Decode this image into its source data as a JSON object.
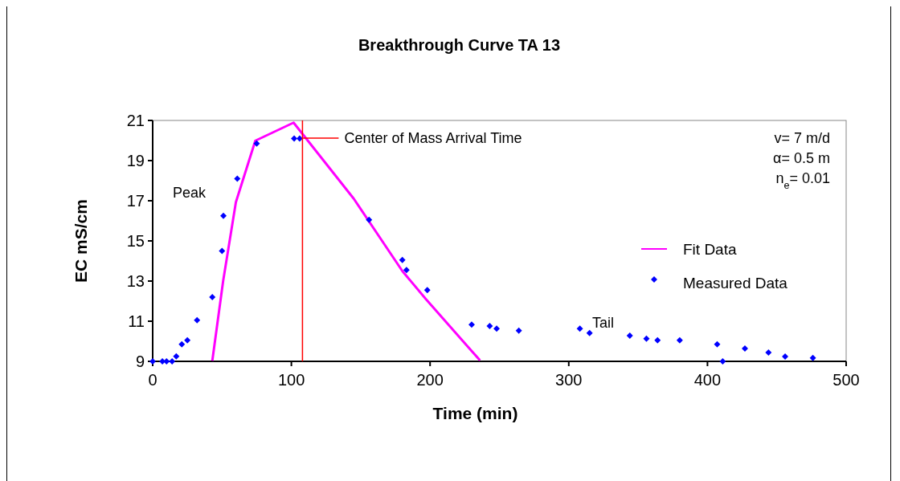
{
  "chart_data": {
    "type": "scatter",
    "title": "Breakthrough Curve TA 13",
    "xlabel": "Time (min)",
    "ylabel": "EC mS/cm",
    "xlim": [
      0,
      500
    ],
    "xticks": [
      0,
      100,
      200,
      300,
      400,
      500
    ],
    "ylim": [
      9,
      21
    ],
    "yticks": [
      9,
      11,
      13,
      15,
      17,
      19,
      21
    ],
    "grid": false,
    "legend": "right",
    "series": [
      {
        "name": "Fit Data",
        "type": "line",
        "color": "#ff00ff",
        "marker": "none",
        "line_style": "solid",
        "x": [
          43,
          50.8,
          60,
          74,
          101.6,
          145,
          180,
          197,
          228,
          236
        ],
        "values": [
          9.03,
          13,
          16.93,
          19.99,
          20.89,
          17.1,
          13.5,
          12.1,
          9.67,
          9.05
        ]
      },
      {
        "name": "Measured Data",
        "color": "#0000ff",
        "marker": "diamond",
        "x": [
          0,
          7,
          10,
          14,
          17,
          21,
          25,
          32,
          43,
          50,
          51,
          61,
          75,
          102,
          106,
          156,
          180,
          183,
          198,
          230,
          243,
          248,
          264,
          308,
          315,
          344,
          356,
          364,
          380,
          407,
          411,
          427,
          444,
          456,
          476
        ],
        "values": [
          9,
          9,
          9,
          9,
          9.25,
          9.85,
          10.05,
          11.05,
          12.2,
          14.5,
          16.25,
          18.1,
          19.85,
          20.1,
          20.1,
          16.05,
          14.05,
          13.55,
          12.55,
          10.83,
          10.76,
          10.63,
          10.53,
          10.63,
          10.41,
          10.28,
          10.13,
          10.05,
          10.05,
          9.85,
          9,
          9.64,
          9.44,
          9.24,
          9.17
        ]
      }
    ],
    "ref_lines": [
      {
        "axis": "x",
        "value": 108,
        "label": "Center of Mass Arrival Time",
        "color": "#ff0000",
        "line_style": "solid"
      }
    ],
    "annotations": [
      "Peak",
      "Tail",
      "v= 7 m/d",
      "α= 0.5 m",
      "n$_{e}$= 0.01"
    ]
  }
}
